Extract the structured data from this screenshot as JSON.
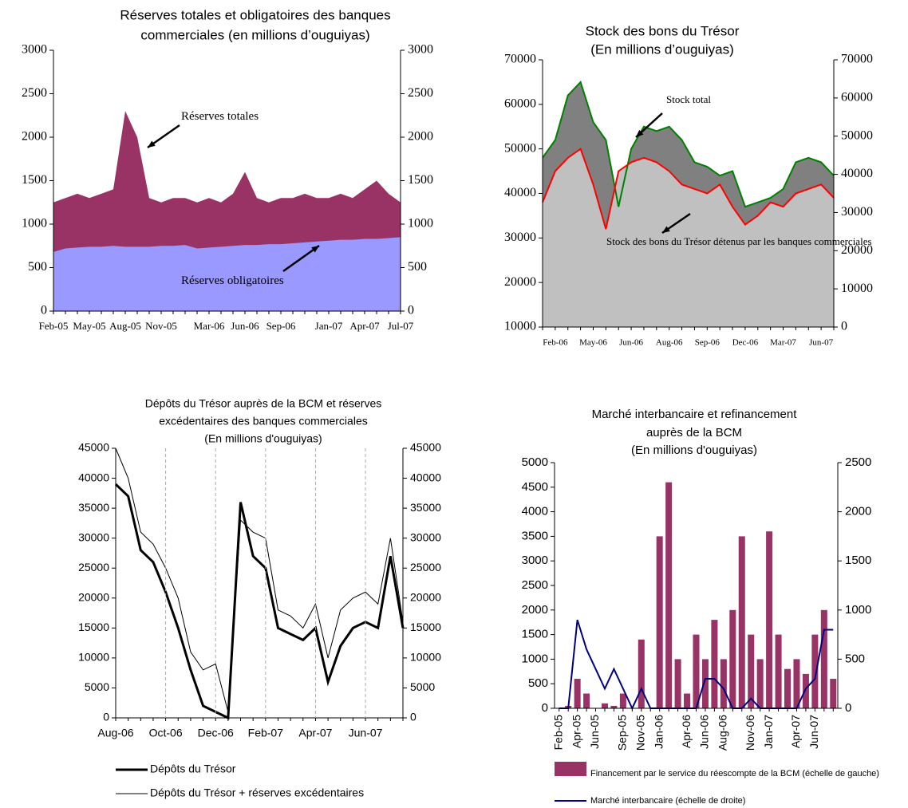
{
  "chart_data": [
    {
      "type": "area",
      "title": [
        "Réserves totales et obligatoires des banques",
        "commerciales (en millions d’ouguiyas)"
      ],
      "categories": [
        "Feb-05",
        null,
        null,
        "May-05",
        null,
        null,
        "Aug-05",
        null,
        null,
        "Nov-05",
        null,
        null,
        null,
        "Mar-06",
        null,
        null,
        "Jun-06",
        null,
        null,
        "Sep-06",
        null,
        null,
        null,
        "Jan-07",
        null,
        null,
        "Apr-07",
        null,
        null,
        "Jul-07"
      ],
      "series": [
        {
          "name": "Réserves totales",
          "color": "#993366",
          "values": [
            1250,
            1300,
            1350,
            1300,
            1350,
            1400,
            2300,
            2000,
            1300,
            1250,
            1300,
            1300,
            1250,
            1300,
            1250,
            1350,
            1600,
            1300,
            1250,
            1300,
            1300,
            1350,
            1300,
            1300,
            1350,
            1300,
            1400,
            1500,
            1350,
            1250
          ]
        },
        {
          "name": "Réserves obligatoires",
          "color": "#9999ff",
          "values": [
            680,
            720,
            730,
            740,
            740,
            750,
            740,
            740,
            740,
            750,
            750,
            760,
            720,
            730,
            740,
            750,
            760,
            760,
            770,
            770,
            780,
            790,
            800,
            810,
            820,
            820,
            830,
            830,
            840,
            850
          ]
        }
      ],
      "ylim": [
        0,
        3000
      ],
      "yticks": [
        0,
        500,
        1000,
        1500,
        2000,
        2500,
        3000
      ],
      "y2lim": [
        0,
        3000
      ],
      "y2ticks": [
        0,
        500,
        1000,
        1500,
        2000,
        2500,
        3000
      ]
    },
    {
      "type": "area",
      "title": [
        "Stock des bons du Trésor",
        "(En millions d’ouguiyas)"
      ],
      "categories": [
        null,
        "Feb-06",
        null,
        null,
        "May-06",
        null,
        null,
        "Jun-06",
        null,
        null,
        "Aug-06",
        null,
        null,
        "Sep-06",
        null,
        null,
        "Dec-06",
        null,
        null,
        "Mar-07",
        null,
        null,
        "Jun-07",
        null
      ],
      "series": [
        {
          "name": "Stock total",
          "color": "#008000",
          "fill": "#808080",
          "values": [
            48000,
            52000,
            62000,
            65000,
            56000,
            52000,
            37000,
            50000,
            55000,
            54000,
            55000,
            52000,
            47000,
            46000,
            44000,
            45000,
            37000,
            38000,
            39000,
            41000,
            47000,
            48000,
            47000,
            44000
          ]
        },
        {
          "name": "Stock des bons du Trésor détenus par les banques commerciales",
          "color": "#ff0000",
          "fill": "#c0c0c0",
          "values": [
            38000,
            45000,
            48000,
            50000,
            42000,
            32000,
            45000,
            47000,
            48000,
            47000,
            45000,
            42000,
            41000,
            40000,
            42000,
            37000,
            33000,
            35000,
            38000,
            37000,
            40000,
            41000,
            42000,
            39000
          ]
        }
      ],
      "ylim": [
        10000,
        70000
      ],
      "yticks": [
        10000,
        20000,
        30000,
        40000,
        50000,
        60000,
        70000
      ],
      "y2lim": [
        0,
        70000
      ],
      "y2ticks": [
        0,
        10000,
        20000,
        30000,
        40000,
        50000,
        60000,
        70000
      ]
    },
    {
      "type": "line",
      "title": [
        "Dépôts du Trésor auprès de la BCM et réserves",
        "excédentaires des banques commerciales",
        "(En millions d'ouguiyas)"
      ],
      "categories": [
        "Aug-06",
        null,
        null,
        null,
        "Oct-06",
        null,
        null,
        null,
        "Dec-06",
        null,
        null,
        null,
        "Feb-07",
        null,
        null,
        null,
        "Apr-07",
        null,
        null,
        null,
        "Jun-07",
        null,
        null,
        null
      ],
      "series": [
        {
          "name": "Dépôts du Trésor",
          "color": "#000000",
          "width": 3,
          "values": [
            39000,
            37000,
            28000,
            26000,
            21000,
            15000,
            8000,
            2000,
            1000,
            0,
            36000,
            27000,
            25000,
            15000,
            14000,
            13000,
            15000,
            6000,
            12000,
            15000,
            16000,
            15000,
            27000,
            15000
          ]
        },
        {
          "name": "Dépôts du Trésor + réserves excédentaires",
          "color": "#000000",
          "width": 1,
          "values": [
            45000,
            40000,
            31000,
            29000,
            25000,
            20000,
            11000,
            8000,
            9000,
            1000,
            33000,
            31000,
            30000,
            18000,
            17000,
            15000,
            19000,
            10000,
            18000,
            20000,
            21000,
            19000,
            30000,
            16000
          ]
        }
      ],
      "ylim": [
        0,
        45000
      ],
      "yticks": [
        0,
        5000,
        10000,
        15000,
        20000,
        25000,
        30000,
        35000,
        40000,
        45000
      ],
      "y2lim": [
        0,
        45000
      ],
      "y2ticks": [
        0,
        5000,
        10000,
        15000,
        20000,
        25000,
        30000,
        35000,
        40000,
        45000
      ],
      "xgrid": true
    },
    {
      "type": "bar",
      "title": [
        "Marché interbancaire et refinancement",
        "auprès de la BCM",
        "(En millions d'ouguiyas)"
      ],
      "categories": [
        "Feb-05",
        null,
        "Apr-05",
        null,
        "Jun-05",
        null,
        null,
        "Sep-05",
        null,
        "Nov-05",
        null,
        "Jan-06",
        null,
        null,
        "Apr-06",
        null,
        "Jun-06",
        null,
        "Aug-06",
        null,
        null,
        "Nov-06",
        null,
        "Jan-07",
        null,
        null,
        "Apr-07",
        null,
        "Jun-07",
        null,
        null
      ],
      "series": [
        {
          "name": "Financement par le service du réescompte de la BCM (échelle de gauche)",
          "color": "#993366",
          "values": [
            0,
            50,
            600,
            300,
            0,
            100,
            50,
            300,
            0,
            1400,
            0,
            3500,
            4600,
            1000,
            300,
            1500,
            1000,
            1800,
            1000,
            2000,
            3500,
            1500,
            1000,
            3600,
            1500,
            800,
            1000,
            700,
            1500,
            2000,
            600
          ]
        },
        {
          "name": "Marché interbancaire (échelle de droite)",
          "color": "#000080",
          "axis": "y2",
          "values": [
            0,
            0,
            900,
            600,
            400,
            200,
            400,
            200,
            0,
            200,
            0,
            0,
            0,
            0,
            0,
            0,
            300,
            300,
            200,
            0,
            0,
            100,
            0,
            0,
            0,
            0,
            0,
            200,
            300,
            800,
            800
          ]
        }
      ],
      "ylim": [
        0,
        5000
      ],
      "yticks": [
        0,
        500,
        1000,
        1500,
        2000,
        2500,
        3000,
        3500,
        4000,
        4500,
        5000
      ],
      "y2lim": [
        0,
        2500
      ],
      "y2ticks": [
        0,
        500,
        1000,
        1500,
        2000,
        2500
      ]
    }
  ]
}
